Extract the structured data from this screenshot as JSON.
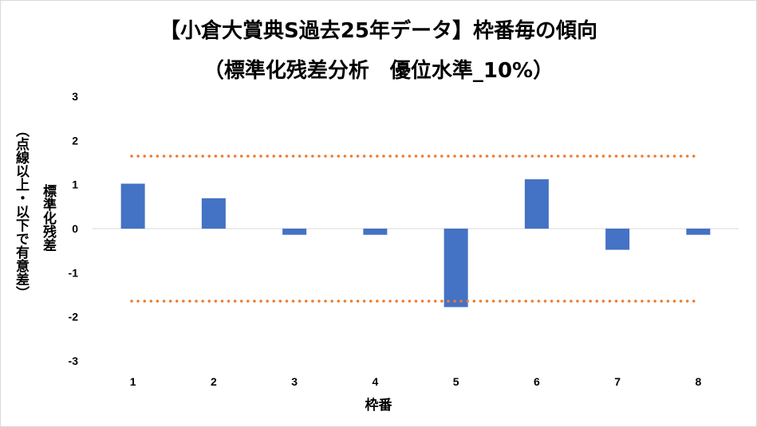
{
  "chart_data": {
    "type": "bar",
    "title": "【小倉大賞典S過去25年データ】枠番毎の傾向",
    "subtitle": "（標準化残差分析　優位水準_10%）",
    "ylabel": "標準化残差",
    "ylabel_note": "（点線以上・以下で有意差）",
    "xlabel": "枠番",
    "categories": [
      "1",
      "2",
      "3",
      "4",
      "5",
      "6",
      "7",
      "8"
    ],
    "values": [
      1.02,
      0.69,
      -0.14,
      -0.14,
      -1.78,
      1.12,
      -0.48,
      -0.14
    ],
    "ylim": [
      -3,
      3
    ],
    "yticks": [
      "3",
      "2",
      "1",
      "0",
      "-1",
      "-2",
      "-3"
    ],
    "threshold_lines": [
      1.645,
      -1.645
    ],
    "grid": false,
    "legend": "none",
    "colors": {
      "bar": "#4472c4",
      "threshold": "#ed7d31",
      "axis": "#d9d9d9"
    }
  }
}
